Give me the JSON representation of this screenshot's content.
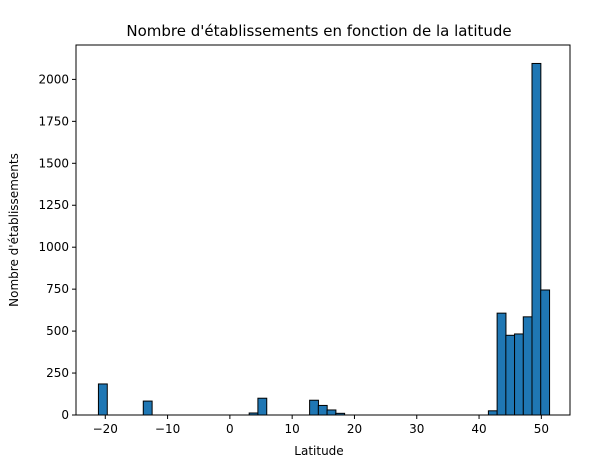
{
  "chart_data": {
    "type": "bar",
    "title": "Nombre d'établissements en fonction de la latitude",
    "xlabel": "Latitude",
    "ylabel": "Nombre d'établissements",
    "xlim": [
      -24.7,
      54.6
    ],
    "ylim": [
      0,
      2205
    ],
    "x_ticks": [
      -20,
      -10,
      0,
      10,
      20,
      30,
      40,
      50
    ],
    "y_ticks": [
      0,
      250,
      500,
      750,
      1000,
      1250,
      1500,
      1750,
      2000
    ],
    "bin_width": 1.42,
    "bins": [
      {
        "start": -21.1,
        "value": 185
      },
      {
        "start": -13.9,
        "value": 83
      },
      {
        "start": 3.1,
        "value": 12
      },
      {
        "start": 4.5,
        "value": 100
      },
      {
        "start": 12.8,
        "value": 88
      },
      {
        "start": 14.2,
        "value": 57
      },
      {
        "start": 15.6,
        "value": 30
      },
      {
        "start": 17.0,
        "value": 10
      },
      {
        "start": 41.5,
        "value": 25
      },
      {
        "start": 42.9,
        "value": 607
      },
      {
        "start": 44.3,
        "value": 475
      },
      {
        "start": 45.7,
        "value": 483
      },
      {
        "start": 47.1,
        "value": 585
      },
      {
        "start": 48.5,
        "value": 2095
      },
      {
        "start": 49.9,
        "value": 745
      }
    ],
    "bar_color": "#1f77b4",
    "edge_color": "#000000",
    "grid": false,
    "legend": false
  }
}
